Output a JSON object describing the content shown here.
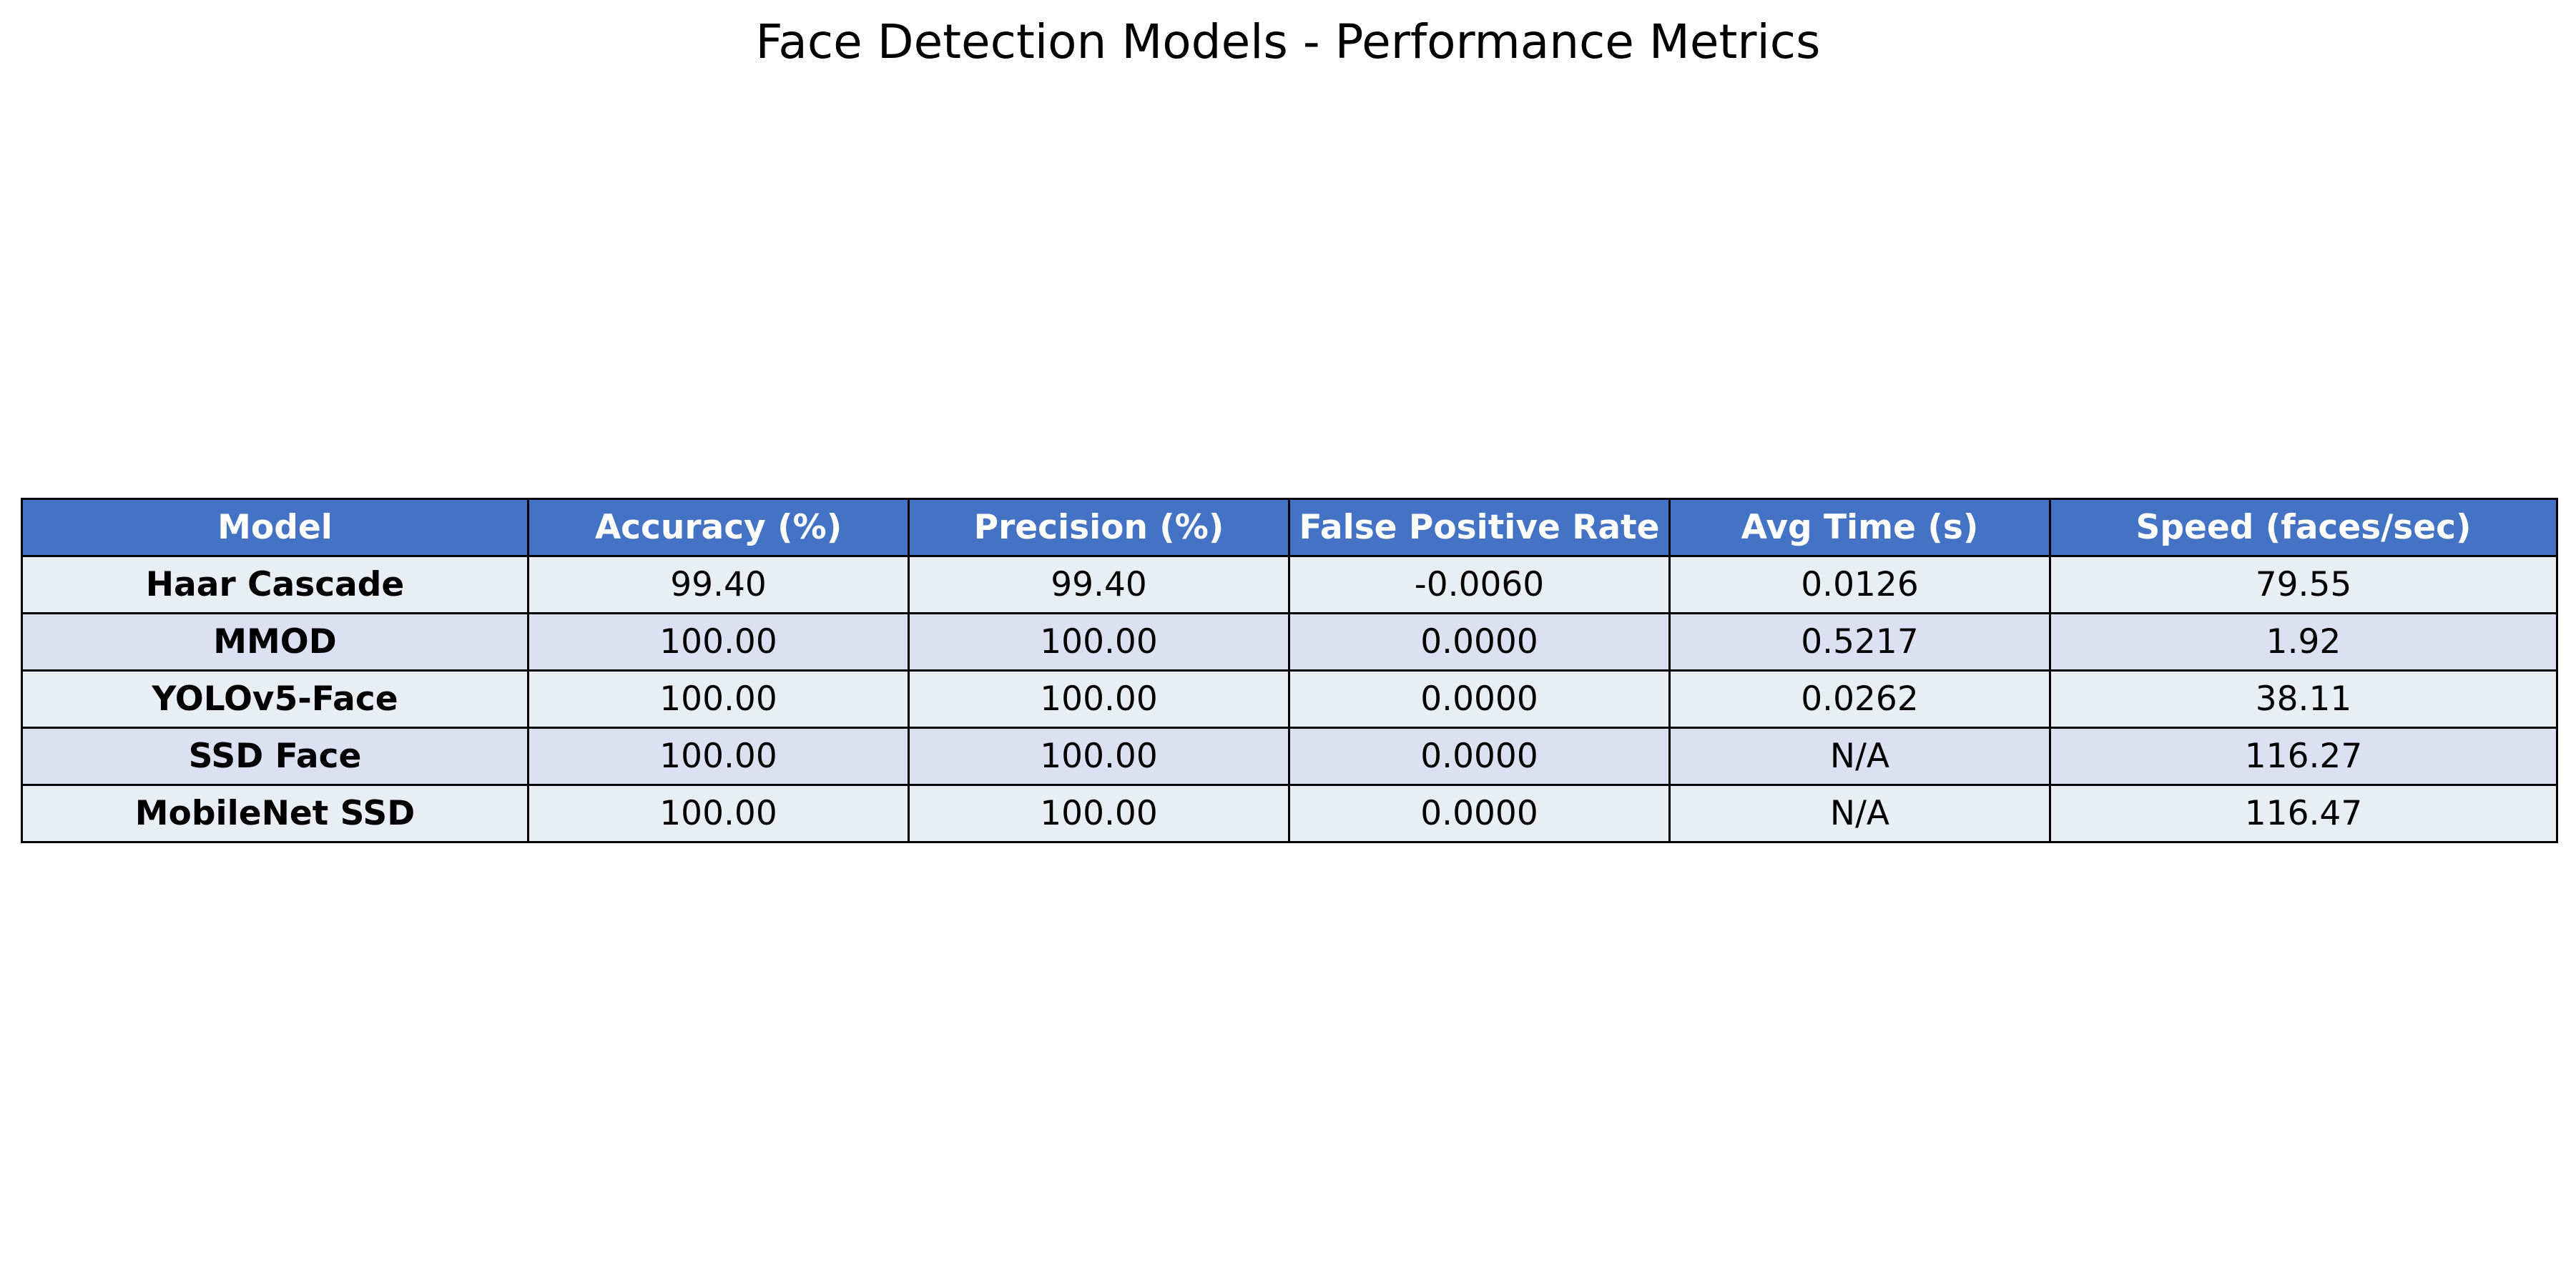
{
  "chart_data": {
    "type": "table",
    "title": "Face Detection Models - Performance Metrics",
    "columns": [
      "Model",
      "Accuracy (%)",
      "Precision (%)",
      "False Positive Rate",
      "Avg Time (s)",
      "Speed (faces/sec)"
    ],
    "rows": [
      [
        "Haar Cascade",
        "99.40",
        "99.40",
        "-0.0060",
        "0.0126",
        "79.55"
      ],
      [
        "MMOD",
        "100.00",
        "100.00",
        "0.0000",
        "0.5217",
        "1.92"
      ],
      [
        "YOLOv5-Face",
        "100.00",
        "100.00",
        "0.0000",
        "0.0262",
        "38.11"
      ],
      [
        "SSD Face",
        "100.00",
        "100.00",
        "0.0000",
        "N/A",
        "116.27"
      ],
      [
        "MobileNet SSD",
        "100.00",
        "100.00",
        "0.0000",
        "N/A",
        "116.47"
      ]
    ],
    "colors": {
      "header_bg": "#4472c4",
      "header_text": "#ffffff",
      "row_odd_bg": "#e9edf4",
      "row_even_bg": "#dbe1f2",
      "border": "#000000"
    }
  }
}
